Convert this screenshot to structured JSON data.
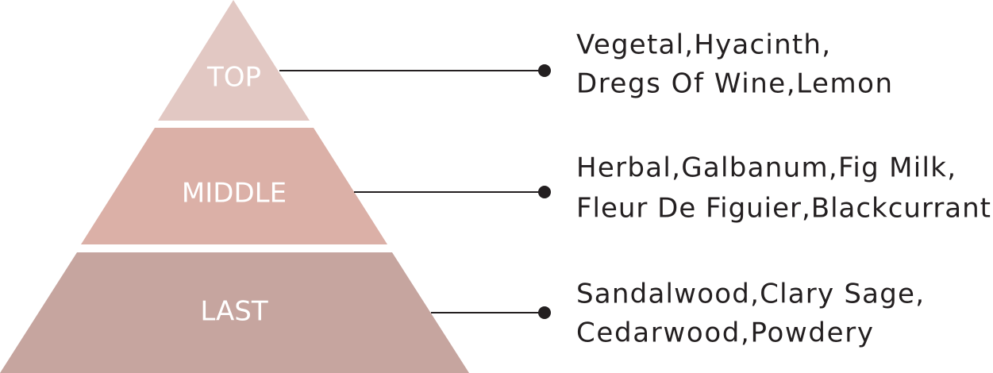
{
  "layers": [
    {
      "label": "TOP",
      "notes": [
        "Vegetal,Hyacinth,",
        "Dregs Of Wine,Lemon"
      ]
    },
    {
      "label": "MIDDLE",
      "notes": [
        "Herbal,Galbanum,Fig Milk,",
        "Fleur De Figuier,Blackcurrant"
      ]
    },
    {
      "label": "LAST",
      "notes": [
        "Sandalwood,Clary Sage,",
        "Cedarwood,Powdery"
      ]
    }
  ]
}
